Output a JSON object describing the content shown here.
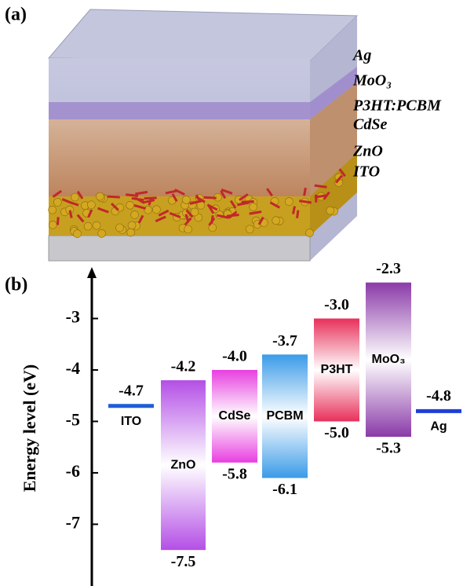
{
  "panel_a": {
    "label": "(a)",
    "layers": [
      "Ag",
      "MoO₃",
      "P3HT:PCBM",
      "CdSe",
      "ZnO",
      "ITO"
    ]
  },
  "chart_data": {
    "type": "energy-level",
    "label": "(b)",
    "y_label": "Energy level (eV)",
    "categories": [
      "ITO",
      "ZnO",
      "CdSe",
      "PCBM",
      "P3HT",
      "MoO₃",
      "Ag"
    ],
    "colors": [
      "#1f5fd6",
      "#b44fe6",
      "#e83fe0",
      "#3a9be8",
      "#e8305a",
      "#8a3aa8",
      "#1f3fd6"
    ],
    "series": [
      {
        "values": [
          -4.7,
          -4.2,
          -4.0,
          -3.7,
          -3.0,
          -2.3,
          -4.8
        ],
        "value_labels": [
          "-4.7",
          "-4.2",
          "-4.0",
          "-3.7",
          "-3.0",
          "-2.3",
          "-4.8"
        ]
      },
      {
        "values": [
          null,
          -7.5,
          -5.8,
          -6.1,
          -5.0,
          -5.3,
          null
        ],
        "value_labels": [
          null,
          "-7.5",
          "-5.8",
          "-6.1",
          "-5.0",
          "-5.3",
          null
        ]
      }
    ],
    "ylim": [
      -8.2,
      -2.0
    ],
    "yticks": [
      -3,
      -4,
      -5,
      -6,
      -7
    ]
  }
}
